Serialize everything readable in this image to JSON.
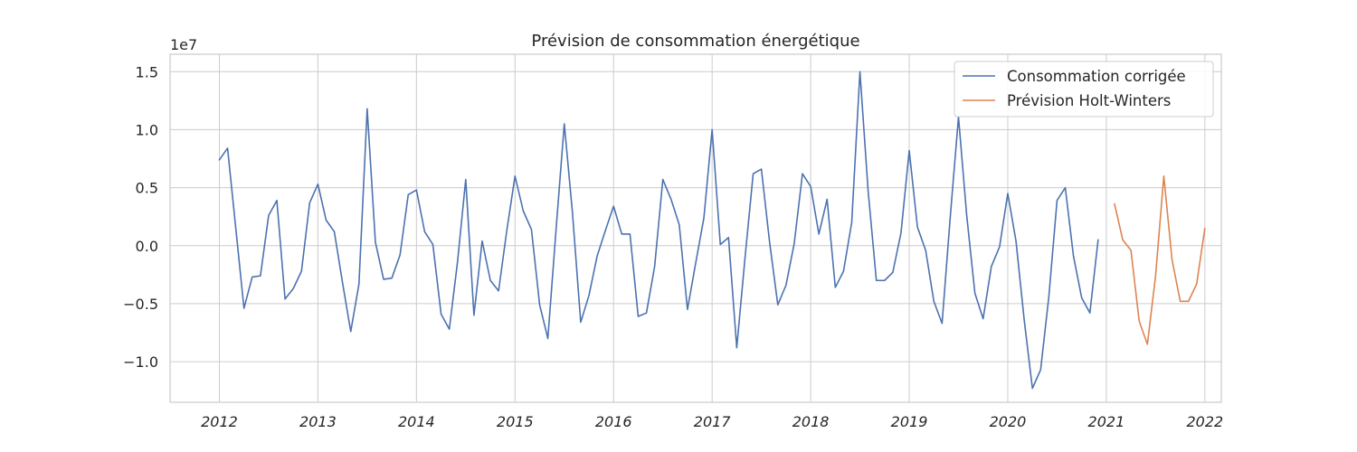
{
  "chart_data": {
    "type": "line",
    "title": "Prévision de consommation énergétique",
    "xlabel": "",
    "ylabel": "",
    "y_offset_label": "1e7",
    "y_multiplier": 10000000,
    "xlim": [
      "2011-07",
      "2022-03"
    ],
    "ylim": [
      -13500000,
      16500000
    ],
    "x_ticks": [
      "2012",
      "2013",
      "2014",
      "2015",
      "2016",
      "2017",
      "2018",
      "2019",
      "2020",
      "2021",
      "2022"
    ],
    "y_ticks": [
      {
        "value": -10000000,
        "label": "−1.0"
      },
      {
        "value": -5000000,
        "label": "−0.5"
      },
      {
        "value": 0,
        "label": "0.0"
      },
      {
        "value": 5000000,
        "label": "0.5"
      },
      {
        "value": 10000000,
        "label": "1.0"
      },
      {
        "value": 15000000,
        "label": "1.5"
      }
    ],
    "grid": true,
    "legend_position": "top-right",
    "series": [
      {
        "name": "Consommation corrigée",
        "color": "#4c72b0",
        "start": "2012-01",
        "frequency": "monthly",
        "values": [
          7400000,
          8400000,
          1500000,
          -5400000,
          -2700000,
          -2600000,
          2600000,
          3900000,
          -4600000,
          -3700000,
          -2200000,
          3700000,
          5300000,
          2200000,
          1200000,
          -3200000,
          -7400000,
          -3300000,
          11800000,
          300000,
          -2900000,
          -2800000,
          -800000,
          4400000,
          4800000,
          1200000,
          100000,
          -5900000,
          -7200000,
          -1400000,
          5700000,
          -6000000,
          400000,
          -3000000,
          -3900000,
          1300000,
          6000000,
          3000000,
          1400000,
          -5100000,
          -8000000,
          1400000,
          10500000,
          2800000,
          -6600000,
          -4300000,
          -900000,
          1300000,
          3400000,
          1000000,
          1000000,
          -6100000,
          -5800000,
          -1800000,
          5700000,
          4000000,
          1800000,
          -5500000,
          -1500000,
          2400000,
          10000000,
          100000,
          700000,
          -8800000,
          -1100000,
          6200000,
          6600000,
          300000,
          -5100000,
          -3400000,
          200000,
          6200000,
          5100000,
          1000000,
          4000000,
          -3600000,
          -2200000,
          2000000,
          15000000,
          4700000,
          -3000000,
          -3000000,
          -2300000,
          1100000,
          8200000,
          1600000,
          -400000,
          -4800000,
          -6700000,
          2500000,
          11100000,
          2600000,
          -4100000,
          -6300000,
          -1800000,
          -100000,
          4500000,
          400000,
          -6400000,
          -12300000,
          -10700000,
          -4400000,
          3900000,
          5000000,
          -900000,
          -4500000,
          -5800000,
          500000
        ]
      },
      {
        "name": "Prévision Holt-Winters",
        "color": "#dd8452",
        "start": "2021-02",
        "frequency": "monthly",
        "values": [
          3600000,
          500000,
          -400000,
          -6500000,
          -8500000,
          -2600000,
          6000000,
          -1200000,
          -4800000,
          -4800000,
          -3300000,
          1500000
        ]
      }
    ]
  }
}
